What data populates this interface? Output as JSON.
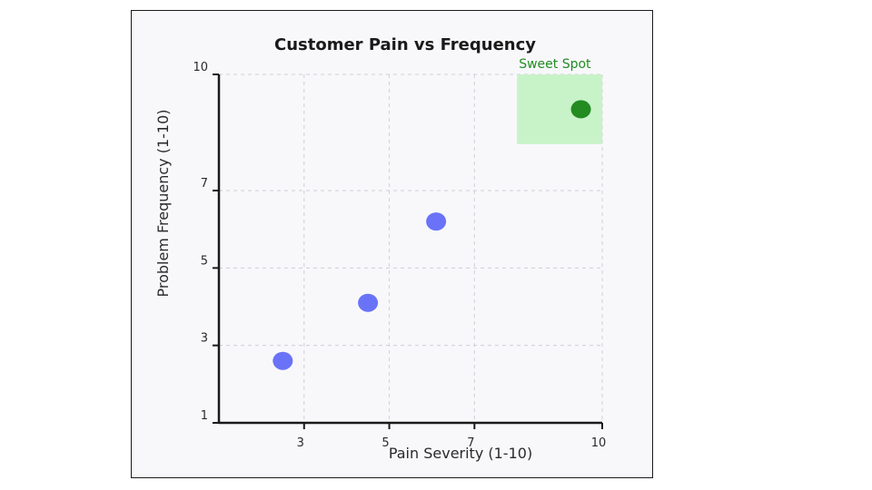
{
  "chart_data": {
    "type": "scatter",
    "title": "Customer Pain vs Frequency",
    "xlabel": "Pain Severity (1-10)",
    "ylabel": "Problem Frequency (1-10)",
    "xlim": [
      1,
      10
    ],
    "ylim": [
      1,
      10
    ],
    "x_ticks": [
      "3",
      "5",
      "7",
      "10"
    ],
    "y_ticks": [
      "1",
      "3",
      "5",
      "7",
      "10"
    ],
    "grid": true,
    "series": [
      {
        "color": "#6a73f8",
        "points": [
          {
            "x": 2.5,
            "y": 2.6
          },
          {
            "x": 4.5,
            "y": 4.1
          },
          {
            "x": 6.1,
            "y": 6.2
          }
        ]
      },
      {
        "color": "#228b22",
        "points": [
          {
            "x": 9.5,
            "y": 9.1
          }
        ]
      }
    ],
    "annotation": {
      "label": "Sweet Spot",
      "color": "#228b22",
      "fill": "#c8f2c8",
      "x_range": [
        8,
        10
      ],
      "y_range": [
        8.2,
        10
      ]
    }
  }
}
